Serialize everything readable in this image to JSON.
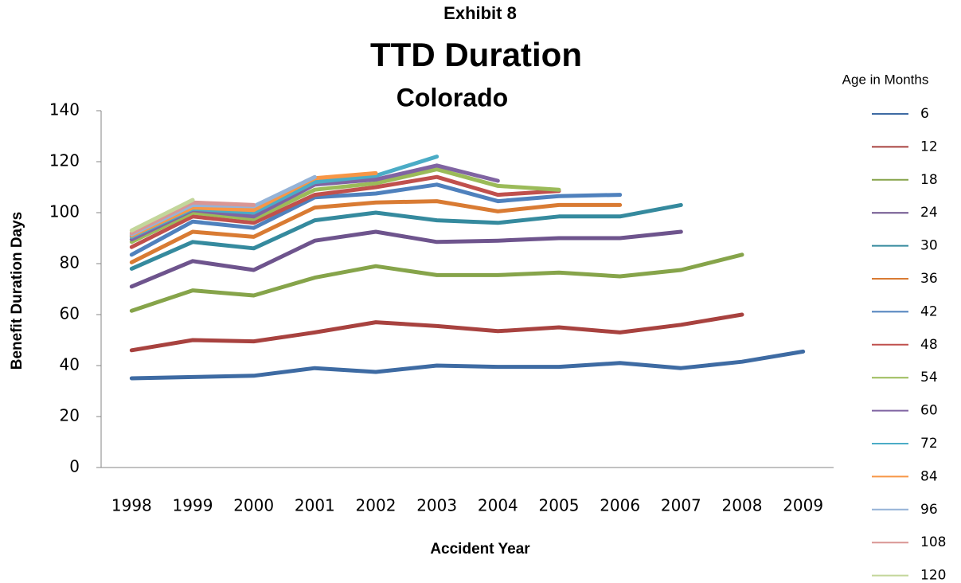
{
  "chart_data": {
    "type": "line",
    "supertitle": "Exhibit 8",
    "title": "TTD Duration",
    "subtitle": "Colorado",
    "x_label": "Accident Year",
    "y_label": "Benefit Duration Days",
    "legend_title": "Age in Months",
    "legend_position": "right",
    "categories": [
      "1998",
      "1999",
      "2000",
      "2001",
      "2002",
      "2003",
      "2004",
      "2005",
      "2006",
      "2007",
      "2008",
      "2009"
    ],
    "ylim": [
      0,
      140
    ],
    "yticks": [
      0,
      20,
      40,
      60,
      80,
      100,
      120,
      140
    ],
    "series": [
      {
        "name": "6",
        "color": "#3e6ba3",
        "values": [
          35,
          35.5,
          36,
          39,
          37.5,
          40,
          39.5,
          39.5,
          41,
          39,
          41.5,
          45.5
        ]
      },
      {
        "name": "12",
        "color": "#a8423f",
        "values": [
          46,
          50,
          49.5,
          53,
          57,
          55.5,
          53.5,
          55,
          53,
          56,
          60,
          null
        ]
      },
      {
        "name": "18",
        "color": "#86a44a",
        "values": [
          61.5,
          69.5,
          67.5,
          74.5,
          79,
          75.5,
          75.5,
          76.5,
          75,
          77.5,
          83.5,
          null
        ]
      },
      {
        "name": "24",
        "color": "#6e548d",
        "values": [
          71,
          81,
          77.5,
          89,
          92.5,
          88.5,
          89,
          90,
          90,
          92.5,
          null,
          null
        ]
      },
      {
        "name": "30",
        "color": "#358a9e",
        "values": [
          78,
          88.5,
          86,
          97,
          100,
          97,
          96,
          98.5,
          98.5,
          103,
          null,
          null
        ]
      },
      {
        "name": "36",
        "color": "#d97b33",
        "values": [
          80.5,
          92.5,
          90.5,
          102,
          104,
          104.5,
          100.5,
          103,
          103,
          null,
          null,
          null
        ]
      },
      {
        "name": "42",
        "color": "#4f81bd",
        "values": [
          83.5,
          96.5,
          94,
          106,
          107.5,
          111,
          104.5,
          106.5,
          107,
          null,
          null,
          null
        ]
      },
      {
        "name": "48",
        "color": "#c0504d",
        "values": [
          86.5,
          98.5,
          96,
          107,
          110,
          114,
          107,
          108.5,
          null,
          null,
          null,
          null
        ]
      },
      {
        "name": "54",
        "color": "#9bbb59",
        "values": [
          88.5,
          100,
          97.5,
          109,
          111.5,
          117,
          110.5,
          109,
          null,
          null,
          null,
          null
        ]
      },
      {
        "name": "60",
        "color": "#8064a2",
        "values": [
          89.5,
          101,
          98.5,
          111,
          113,
          118.5,
          112.5,
          null,
          null,
          null,
          null,
          null
        ]
      },
      {
        "name": "72",
        "color": "#4bacc6",
        "values": [
          90.5,
          101.5,
          100,
          112,
          114.5,
          122,
          null,
          null,
          null,
          null,
          null,
          null
        ]
      },
      {
        "name": "84",
        "color": "#f79646",
        "values": [
          91,
          102,
          101,
          113.5,
          115.5,
          null,
          null,
          null,
          null,
          null,
          null,
          null
        ]
      },
      {
        "name": "96",
        "color": "#95b3d7",
        "values": [
          91.5,
          103,
          102.5,
          114,
          null,
          null,
          null,
          null,
          null,
          null,
          null,
          null
        ]
      },
      {
        "name": "108",
        "color": "#d99694",
        "values": [
          92,
          104,
          103,
          null,
          null,
          null,
          null,
          null,
          null,
          null,
          null,
          null
        ]
      },
      {
        "name": "120",
        "color": "#c3d69b",
        "values": [
          93,
          105,
          null,
          null,
          null,
          null,
          null,
          null,
          null,
          null,
          null,
          null
        ]
      }
    ]
  }
}
